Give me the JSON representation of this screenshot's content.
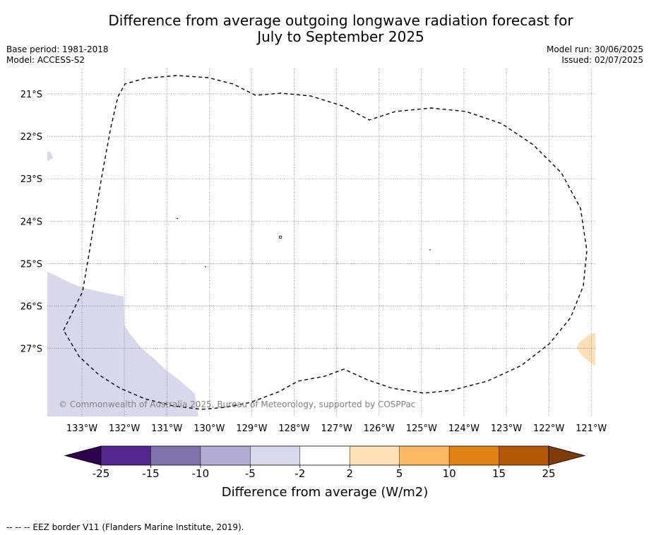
{
  "header": {
    "title_line1": "Difference from average outgoing longwave radiation forecast for",
    "title_line2": "July to September 2025",
    "base_period": "Base period: 1981-2018",
    "model": "Model: ACCESS-S2",
    "model_run": "Model run: 30/06/2025",
    "issued": "Issued: 02/07/2025"
  },
  "map": {
    "lon_labels": [
      "133°W",
      "132°W",
      "131°W",
      "130°W",
      "129°W",
      "128°W",
      "127°W",
      "126°W",
      "125°W",
      "124°W",
      "123°W",
      "122°W",
      "121°W"
    ],
    "lat_labels": [
      "21°S",
      "22°S",
      "23°S",
      "24°S",
      "25°S",
      "26°S",
      "27°S"
    ],
    "copyright": "© Commonwealth of Australia 2025, Bureau of Meteorology, supported by COSPPac",
    "region_colors": {
      "negative_anomaly": "#d8d8ea",
      "positive_anomaly": "#fee0b6"
    },
    "eez_border_style": "dashed"
  },
  "colorbar": {
    "label": "Difference from average (W/m2)",
    "ticks": [
      "-25",
      "-15",
      "-10",
      "-5",
      "-2",
      "2",
      "5",
      "10",
      "15",
      "25"
    ],
    "colors": [
      "#54278f",
      "#8073ac",
      "#b2abd2",
      "#d8daeb",
      "#ffffff",
      "#fee0b6",
      "#fdb863",
      "#e08214",
      "#b35806"
    ],
    "under_color": "#2d004b",
    "over_color": "#7f3b08"
  },
  "footer": {
    "legend_text": "--  --  -- EEZ border V11 (Flanders Marine Institute, 2019)."
  }
}
